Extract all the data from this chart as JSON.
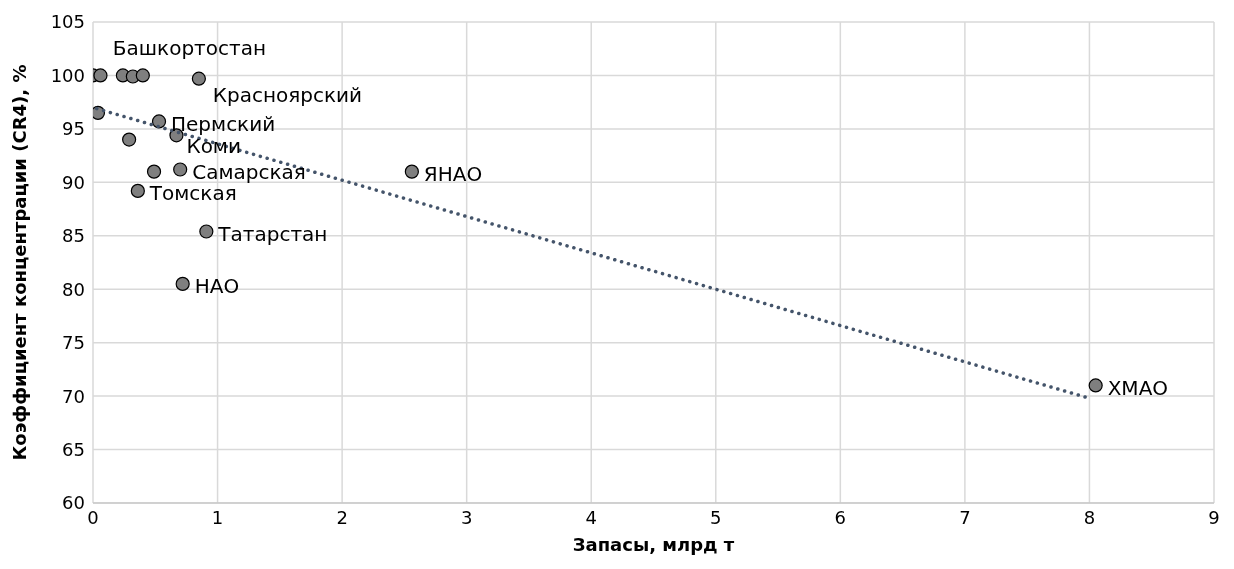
{
  "chart_data": {
    "type": "scatter",
    "xlabel": "Запасы, млрд т",
    "ylabel": "Коэффициент концентрации (CR4), %",
    "xlim": [
      0,
      9
    ],
    "xticks": [
      0,
      1,
      2,
      3,
      4,
      5,
      6,
      7,
      8,
      9
    ],
    "ylim": [
      60,
      105
    ],
    "yticks": [
      60,
      65,
      70,
      75,
      80,
      85,
      90,
      95,
      100,
      105
    ],
    "grid": true,
    "series": [
      {
        "marker": "circle",
        "color": "#7f7f7f",
        "x": [
          0.0,
          0.06,
          0.24,
          0.32,
          0.4,
          0.85,
          0.04,
          0.53,
          0.29,
          0.67,
          0.49,
          0.7,
          0.36,
          0.91,
          0.72,
          2.56,
          8.05
        ],
        "values": [
          100,
          100,
          100,
          99.9,
          100,
          99.7,
          96.5,
          95.7,
          94.0,
          94.4,
          91.0,
          91.2,
          89.2,
          85.4,
          80.5,
          91.0,
          71.0
        ]
      },
      {
        "type": "line",
        "color": "#44546a",
        "line_style": "dotted",
        "x": [
          0.03,
          8.0
        ],
        "values": [
          96.9,
          69.8
        ]
      }
    ],
    "annotations": [
      {
        "text": "Башкортостан",
        "x": 0.4,
        "y": 100
      },
      {
        "text": "Красноярский",
        "x": 0.85,
        "y": 99.7
      },
      {
        "text": "Пермский",
        "x": 0.53,
        "y": 95.7
      },
      {
        "text": "Коми",
        "x": 0.67,
        "y": 94.4
      },
      {
        "text": "Самарская",
        "x": 0.7,
        "y": 91.2
      },
      {
        "text": "Томская",
        "x": 0.36,
        "y": 89.2
      },
      {
        "text": "Татарстан",
        "x": 0.91,
        "y": 85.4
      },
      {
        "text": "НАО",
        "x": 0.72,
        "y": 80.5
      },
      {
        "text": "ЯНАО",
        "x": 2.56,
        "y": 91.0
      },
      {
        "text": "ХМАО",
        "x": 8.05,
        "y": 71.0
      }
    ]
  }
}
